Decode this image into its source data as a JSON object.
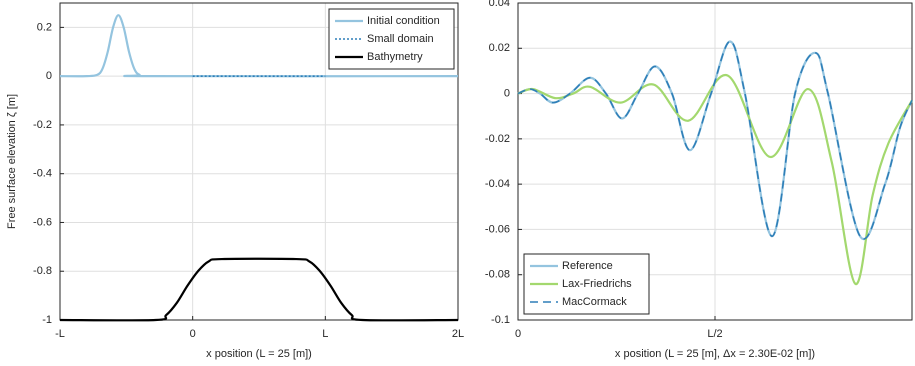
{
  "chart_data": [
    {
      "type": "line",
      "xlabel": "x position (L = 25 [m])",
      "ylabel": "Free surface elevation ζ [m]",
      "xlim": [
        -25,
        50
      ],
      "xticks": [
        {
          "value": -25,
          "label": "-L"
        },
        0,
        {
          "value": 25,
          "label": "L"
        },
        {
          "value": 50,
          "label": "2L"
        }
      ],
      "ylim": [
        -1,
        0.3
      ],
      "yticks": [
        -1,
        -0.8,
        -0.6,
        -0.4,
        -0.2,
        0,
        0.2
      ],
      "grid": true,
      "legend": "upper right",
      "series": [
        {
          "name": "Initial condition",
          "color": "#94c4df",
          "dash": "solid",
          "x": [
            -25,
            -20,
            -18,
            -17,
            -16,
            -15,
            -14,
            -13,
            -12,
            -11,
            -10,
            -8,
            50
          ],
          "values": [
            0,
            0,
            0.005,
            0.03,
            0.1,
            0.2,
            0.25,
            0.2,
            0.1,
            0.03,
            0.005,
            0,
            0
          ]
        },
        {
          "name": "Small domain",
          "color": "#2f7fb8",
          "dash": "dotted",
          "x": [
            0,
            25
          ],
          "values": [
            0,
            0
          ]
        },
        {
          "name": "Bathymetry",
          "color": "#000000",
          "dash": "solid",
          "x": [
            -25,
            -7,
            -5,
            -3,
            -1,
            1,
            3,
            5.5,
            19.5,
            22,
            24,
            26,
            28,
            30,
            32,
            50
          ],
          "values": [
            -1,
            -1,
            -0.98,
            -0.93,
            -0.86,
            -0.8,
            -0.76,
            -0.75,
            -0.75,
            -0.76,
            -0.8,
            -0.86,
            -0.93,
            -0.98,
            -1,
            -1
          ]
        }
      ]
    },
    {
      "type": "line",
      "xlabel": "x position (L = 25 [m], Δx = 2.30E-02 [m])",
      "xlim": [
        0,
        25
      ],
      "xticks": [
        0,
        {
          "value": 12.5,
          "label": "L/2"
        }
      ],
      "ylim": [
        -0.1,
        0.04
      ],
      "yticks": [
        -0.1,
        -0.08,
        -0.06,
        -0.04,
        -0.02,
        0,
        0.02,
        0.04
      ],
      "grid": true,
      "legend": "lower left",
      "series": [
        {
          "name": "Reference",
          "color": "#94c4df",
          "dash": "solid",
          "x": [
            0,
            0.76,
            1.4,
            2.22,
            3.3,
            4.57,
            5.58,
            6.6,
            7.61,
            8.69,
            9.77,
            10.91,
            12.25,
            13.45,
            14.4,
            16.12,
            17.58,
            18.85,
            19.67,
            21.7,
            23.29,
            24.24,
            25
          ],
          "values": [
            0,
            0.002,
            0,
            -0.004,
            0,
            0.007,
            0,
            -0.011,
            0,
            0.012,
            0,
            -0.025,
            0,
            0.023,
            0,
            -0.063,
            0,
            0.018,
            0,
            -0.063,
            -0.04,
            -0.015,
            -0.003
          ]
        },
        {
          "name": "Lax-Friedrichs",
          "color": "#a3d86e",
          "dash": "solid",
          "x": [
            0,
            0.95,
            2.35,
            3.5,
            4.57,
            6.5,
            8.6,
            10.8,
            13.3,
            16,
            18.4,
            19.9,
            21.4,
            22.5,
            23.5,
            25
          ],
          "values": [
            0,
            0.002,
            -0.002,
            0,
            0.003,
            -0.004,
            0.004,
            -0.012,
            0.008,
            -0.028,
            0.002,
            -0.03,
            -0.084,
            -0.045,
            -0.022,
            -0.003
          ]
        },
        {
          "name": "MacCormack",
          "color": "#2f7fb8",
          "dash": "dashed",
          "x": [
            0,
            0.76,
            1.4,
            2.22,
            3.3,
            4.57,
            5.58,
            6.6,
            7.61,
            8.69,
            9.77,
            10.91,
            12.25,
            13.45,
            14.4,
            16.12,
            17.58,
            18.85,
            19.67,
            21.7,
            23.29,
            24.24,
            25
          ],
          "values": [
            0,
            0.002,
            0,
            -0.004,
            0,
            0.007,
            0,
            -0.011,
            0,
            0.012,
            0,
            -0.025,
            0,
            0.023,
            0,
            -0.063,
            0,
            0.018,
            0,
            -0.063,
            -0.04,
            -0.015,
            -0.003
          ]
        }
      ]
    }
  ]
}
